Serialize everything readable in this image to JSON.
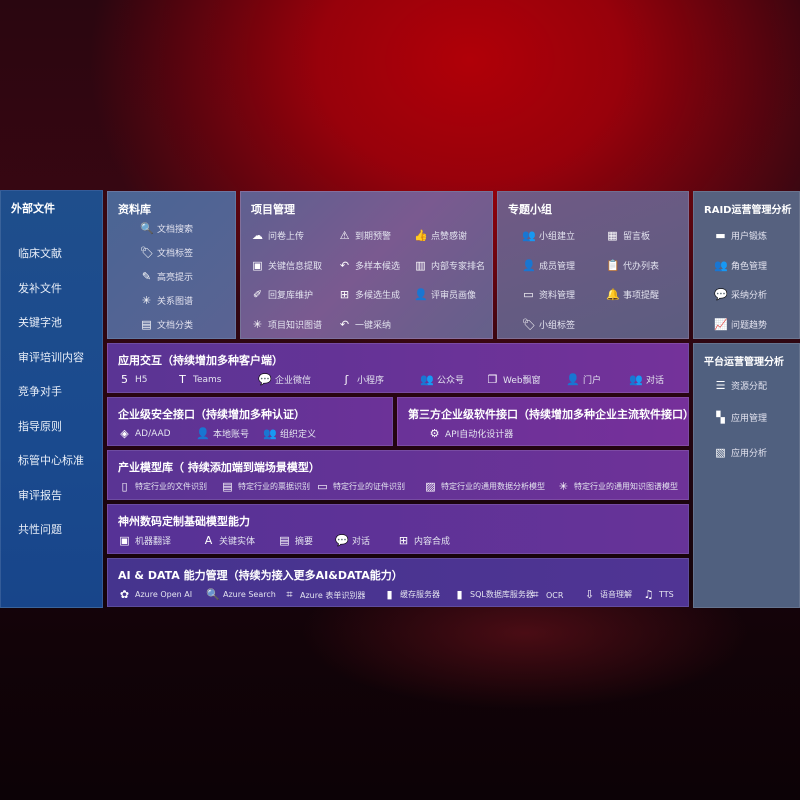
{
  "sidebar": {
    "title": "外部文件",
    "items": [
      "临床文献",
      "发补文件",
      "关键字池",
      "审评培训内容",
      "竞争对手",
      "指导原则",
      "标管中心标准",
      "审评报告",
      "共性问题"
    ]
  },
  "library": {
    "title": "资料库",
    "items": [
      {
        "icon": "document-search-icon",
        "glyph": "🔍",
        "label": "文档搜索"
      },
      {
        "icon": "tag-icon",
        "glyph": "🏷",
        "label": "文档标签"
      },
      {
        "icon": "pen-icon",
        "glyph": "✎",
        "label": "高亮提示"
      },
      {
        "icon": "graph-icon",
        "glyph": "✳",
        "label": "关系图谱"
      },
      {
        "icon": "document-list-icon",
        "glyph": "▤",
        "label": "文档分类"
      }
    ]
  },
  "project": {
    "title": "项目管理",
    "items": [
      {
        "icon": "cloud-upload-icon",
        "glyph": "☁",
        "label": "问卷上传"
      },
      {
        "icon": "alarm-icon",
        "glyph": "⚠",
        "label": "到期预警"
      },
      {
        "icon": "thumbs-up-icon",
        "glyph": "👍",
        "label": "点赞感谢"
      },
      {
        "icon": "extract-icon",
        "glyph": "▣",
        "label": "关键信息提取"
      },
      {
        "icon": "reply-icon",
        "glyph": "↶",
        "label": "多样本候选"
      },
      {
        "icon": "ranking-icon",
        "glyph": "▥",
        "label": "内部专家排名"
      },
      {
        "icon": "edit-icon",
        "glyph": "✐",
        "label": "回复库维护"
      },
      {
        "icon": "puzzle-icon",
        "glyph": "⊞",
        "label": "多候选生成"
      },
      {
        "icon": "user-profile-icon",
        "glyph": "👤",
        "label": "评审员画像"
      },
      {
        "icon": "knowledge-graph-icon",
        "glyph": "✳",
        "label": "项目知识图谱"
      },
      {
        "icon": "reply-icon",
        "glyph": "↶",
        "label": "一键采纳"
      }
    ]
  },
  "groups": {
    "title": "专题小组",
    "items": [
      {
        "icon": "group-icon",
        "glyph": "👥",
        "label": "小组建立"
      },
      {
        "icon": "bbs-icon",
        "glyph": "▦",
        "label": "留言板"
      },
      {
        "icon": "member-icon",
        "glyph": "👤",
        "label": "成员管理"
      },
      {
        "icon": "clipboard-icon",
        "glyph": "📋",
        "label": "代办列表"
      },
      {
        "icon": "folder-icon",
        "glyph": "▭",
        "label": "资料管理"
      },
      {
        "icon": "bell-icon",
        "glyph": "🔔",
        "label": "事项提醒"
      },
      {
        "icon": "tag-icon",
        "glyph": "🏷",
        "label": "小组标签"
      }
    ]
  },
  "raid": {
    "title": "RAID运营管理分析",
    "items": [
      {
        "icon": "id-card-icon",
        "glyph": "▬",
        "label": "用户锻炼"
      },
      {
        "icon": "users-icon",
        "glyph": "👥",
        "label": "角色管理"
      },
      {
        "icon": "qa-icon",
        "glyph": "💬",
        "label": "采纳分析"
      },
      {
        "icon": "trend-icon",
        "glyph": "📈",
        "label": "问题趋势"
      }
    ]
  },
  "platform": {
    "title": "平台运营管理分析",
    "items": [
      {
        "icon": "checklist-icon",
        "glyph": "☰",
        "label": "资源分配"
      },
      {
        "icon": "apps-icon",
        "glyph": "▚",
        "label": "应用管理"
      },
      {
        "icon": "analytics-icon",
        "glyph": "▧",
        "label": "应用分析"
      }
    ]
  },
  "app": {
    "title": "应用交互（持续增加多种客户端）",
    "items": [
      {
        "icon": "html5-icon",
        "glyph": "5",
        "label": "H5"
      },
      {
        "icon": "teams-icon",
        "glyph": "T",
        "label": "Teams"
      },
      {
        "icon": "wecom-icon",
        "glyph": "💬",
        "label": "企业微信"
      },
      {
        "icon": "miniprogram-icon",
        "glyph": "ʃ",
        "label": "小程序"
      },
      {
        "icon": "official-account-icon",
        "glyph": "👥",
        "label": "公众号"
      },
      {
        "icon": "web-window-icon",
        "glyph": "❐",
        "label": "Web飘窗"
      },
      {
        "icon": "portal-icon",
        "glyph": "👤",
        "label": "门户"
      },
      {
        "icon": "chat-icon",
        "glyph": "👥",
        "label": "对话"
      }
    ]
  },
  "security": {
    "title": "企业级安全接口（持续增加多种认证）",
    "items": [
      {
        "icon": "aad-icon",
        "glyph": "◈",
        "label": "AD/AAD"
      },
      {
        "icon": "local-account-icon",
        "glyph": "👤",
        "label": "本地账号"
      },
      {
        "icon": "organization-icon",
        "glyph": "👥",
        "label": "组织定义"
      }
    ]
  },
  "thirdparty": {
    "title": "第三方企业级软件接口（持续增加多种企业主流软件接口）",
    "items": [
      {
        "icon": "gear-icon",
        "glyph": "⚙",
        "label": "API自动化设计器"
      }
    ]
  },
  "industry": {
    "title": "产业模型库（ 持续添加端到端场景模型）",
    "items": [
      {
        "icon": "file-icon",
        "glyph": "▯",
        "label": "特定行业的文件识别"
      },
      {
        "icon": "receipt-icon",
        "glyph": "▤",
        "label": "特定行业的票据识别"
      },
      {
        "icon": "id-card-icon",
        "glyph": "▭",
        "label": "特定行业的证件识别"
      },
      {
        "icon": "chart-icon",
        "glyph": "▨",
        "label": "特定行业的通用数据分析模型"
      },
      {
        "icon": "knowledge-graph-icon",
        "glyph": "✳",
        "label": "特定行业的通用知识图谱模型"
      }
    ]
  },
  "shenzhou": {
    "title": "神州数码定制基础模型能力",
    "items": [
      {
        "icon": "translate-icon",
        "glyph": "▣",
        "label": "机器翻译"
      },
      {
        "icon": "entity-icon",
        "glyph": "A",
        "label": "关键实体"
      },
      {
        "icon": "summary-icon",
        "glyph": "▤",
        "label": "摘要"
      },
      {
        "icon": "chat-icon",
        "glyph": "💬",
        "label": "对话"
      },
      {
        "icon": "compose-icon",
        "glyph": "⊞",
        "label": "内容合成"
      }
    ]
  },
  "aidata": {
    "title": "AI & DATA 能力管理（持续为接入更多AI&DATA能力）",
    "items": [
      {
        "icon": "openai-icon",
        "glyph": "✿",
        "label": "Azure Open AI"
      },
      {
        "icon": "search-doc-icon",
        "glyph": "🔍",
        "label": "Azure Search"
      },
      {
        "icon": "form-recognizer-icon",
        "glyph": "⌗",
        "label": "Azure 表单识别器"
      },
      {
        "icon": "cache-server-icon",
        "glyph": "▮",
        "label": "缓存服务器"
      },
      {
        "icon": "sql-database-icon",
        "glyph": "▮",
        "label": "SQL数据库服务器"
      },
      {
        "icon": "ocr-icon",
        "glyph": "⌗",
        "label": "OCR"
      },
      {
        "icon": "speech-icon",
        "glyph": "⇩",
        "label": "语音理解"
      },
      {
        "icon": "tts-icon",
        "glyph": "♫",
        "label": "TTS"
      }
    ]
  },
  "colors": {
    "sidebar": "#1d4a8c",
    "library": "#4f6592",
    "project": "#6b5b8c",
    "groups": "#625a80",
    "raid": "#56617f",
    "purple": "#6a3598",
    "aidata": "#4a3590"
  }
}
